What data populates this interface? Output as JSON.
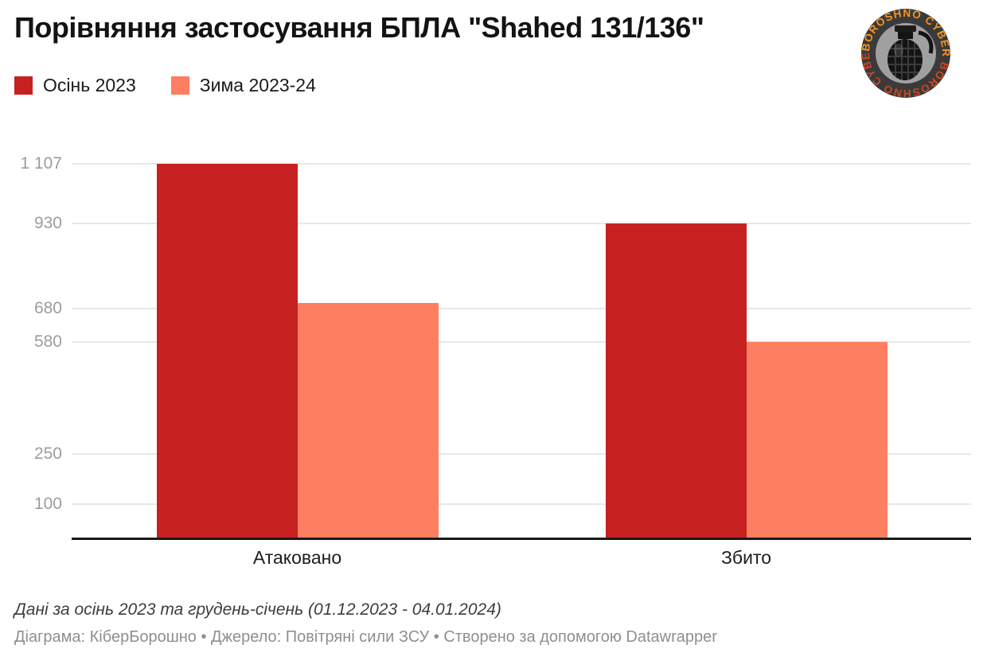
{
  "header": {
    "title": "Порівняння застосування БПЛА \"Shahed 131/136\"",
    "logo": {
      "ring_words": [
        {
          "text": "BOROSHNO",
          "color": "#f7941e"
        },
        {
          "text": "CYBER",
          "color": "#f7941e"
        },
        {
          "text": "BOROSHNO",
          "color": "#d2451e"
        },
        {
          "text": "CYBER",
          "color": "#d2451e"
        }
      ],
      "ring_color": "#3a3a3a",
      "inner_color": "#a0a0a0",
      "grenade_color": "#141414"
    }
  },
  "legend": {
    "items": [
      {
        "label": "Осінь 2023",
        "color": "#c62120"
      },
      {
        "label": "Зима 2023-24",
        "color": "#fd7e61"
      }
    ]
  },
  "chart_data": {
    "type": "bar",
    "title": "Порівняння застосування БПЛА \"Shahed 131/136\"",
    "categories": [
      "Атаковано",
      "Збито"
    ],
    "category_keys": [
      "attacked",
      "downed"
    ],
    "series": [
      {
        "name": "Осінь 2023",
        "key": "autumn-2023",
        "color": "#c62120",
        "values": [
          1107,
          930
        ]
      },
      {
        "name": "Зима 2023-24",
        "key": "winter-2023-24",
        "color": "#fd7e61",
        "values": [
          697,
          580
        ]
      }
    ],
    "yticks": [
      {
        "value": 1107,
        "label": "1 107"
      },
      {
        "value": 930,
        "label": "930"
      },
      {
        "value": 680,
        "label": "680"
      },
      {
        "value": 580,
        "label": "580"
      },
      {
        "value": 250,
        "label": "250"
      },
      {
        "value": 100,
        "label": "100"
      }
    ],
    "ylim": [
      0,
      1107
    ],
    "grid": true,
    "legend_position": "top-left",
    "xlabel": "",
    "ylabel": "",
    "gridline_color": "#e8e8e8",
    "axis_color": "#191919"
  },
  "footer": {
    "note": "Дані за осінь 2023 та грудень-січень (01.12.2023 - 04.01.2024)",
    "attribution": "Діаграма: КіберБорошно • Джерело: Повітряні сили ЗСУ • Створено за допомогою Datawrapper"
  }
}
